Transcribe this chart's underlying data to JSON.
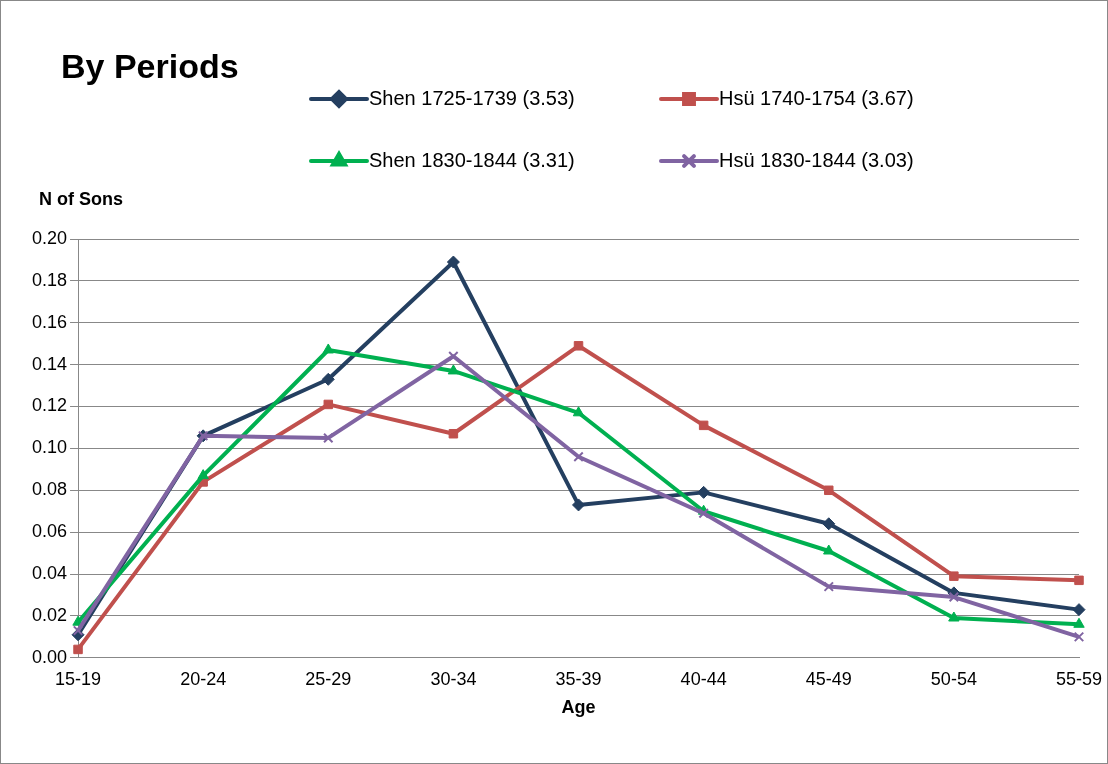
{
  "chart_data": {
    "type": "line",
    "title": "By Periods",
    "xlabel": "Age",
    "ylabel": "N of Sons",
    "categories": [
      "15-19",
      "20-24",
      "25-29",
      "30-34",
      "35-39",
      "40-44",
      "45-49",
      "50-54",
      "55-59"
    ],
    "series": [
      {
        "name": "Shen 1725-1739 (3.53)",
        "color": "#243f60",
        "marker": "diamond",
        "values": [
          0.011,
          0.106,
          0.133,
          0.189,
          0.073,
          0.079,
          0.064,
          0.031,
          0.023
        ]
      },
      {
        "name": "Hsü 1740-1754 (3.67)",
        "color": "#c0504d",
        "marker": "square",
        "values": [
          0.004,
          0.084,
          0.121,
          0.107,
          0.149,
          0.111,
          0.08,
          0.039,
          0.037
        ]
      },
      {
        "name": "Shen 1830-1844 (3.31)",
        "color": "#00b050",
        "marker": "triangle",
        "values": [
          0.017,
          0.087,
          0.147,
          0.137,
          0.117,
          0.07,
          0.051,
          0.019,
          0.016
        ]
      },
      {
        "name": "Hsü 1830-1844 (3.03)",
        "color": "#8064a2",
        "marker": "cross",
        "values": [
          0.013,
          0.106,
          0.105,
          0.144,
          0.096,
          0.069,
          0.034,
          0.029,
          0.01
        ]
      }
    ],
    "ylim": [
      0,
      0.2
    ],
    "yticks": [
      {
        "value": 0,
        "label": "0.00"
      },
      0.02,
      0.04,
      0.06,
      0.08,
      {
        "value": 0.1,
        "label": "0.10"
      },
      0.12,
      0.14,
      0.16,
      0.18,
      {
        "value": 0.2,
        "label": "0.20"
      }
    ],
    "grid": "y",
    "legend": "top",
    "line_style": "solid"
  }
}
